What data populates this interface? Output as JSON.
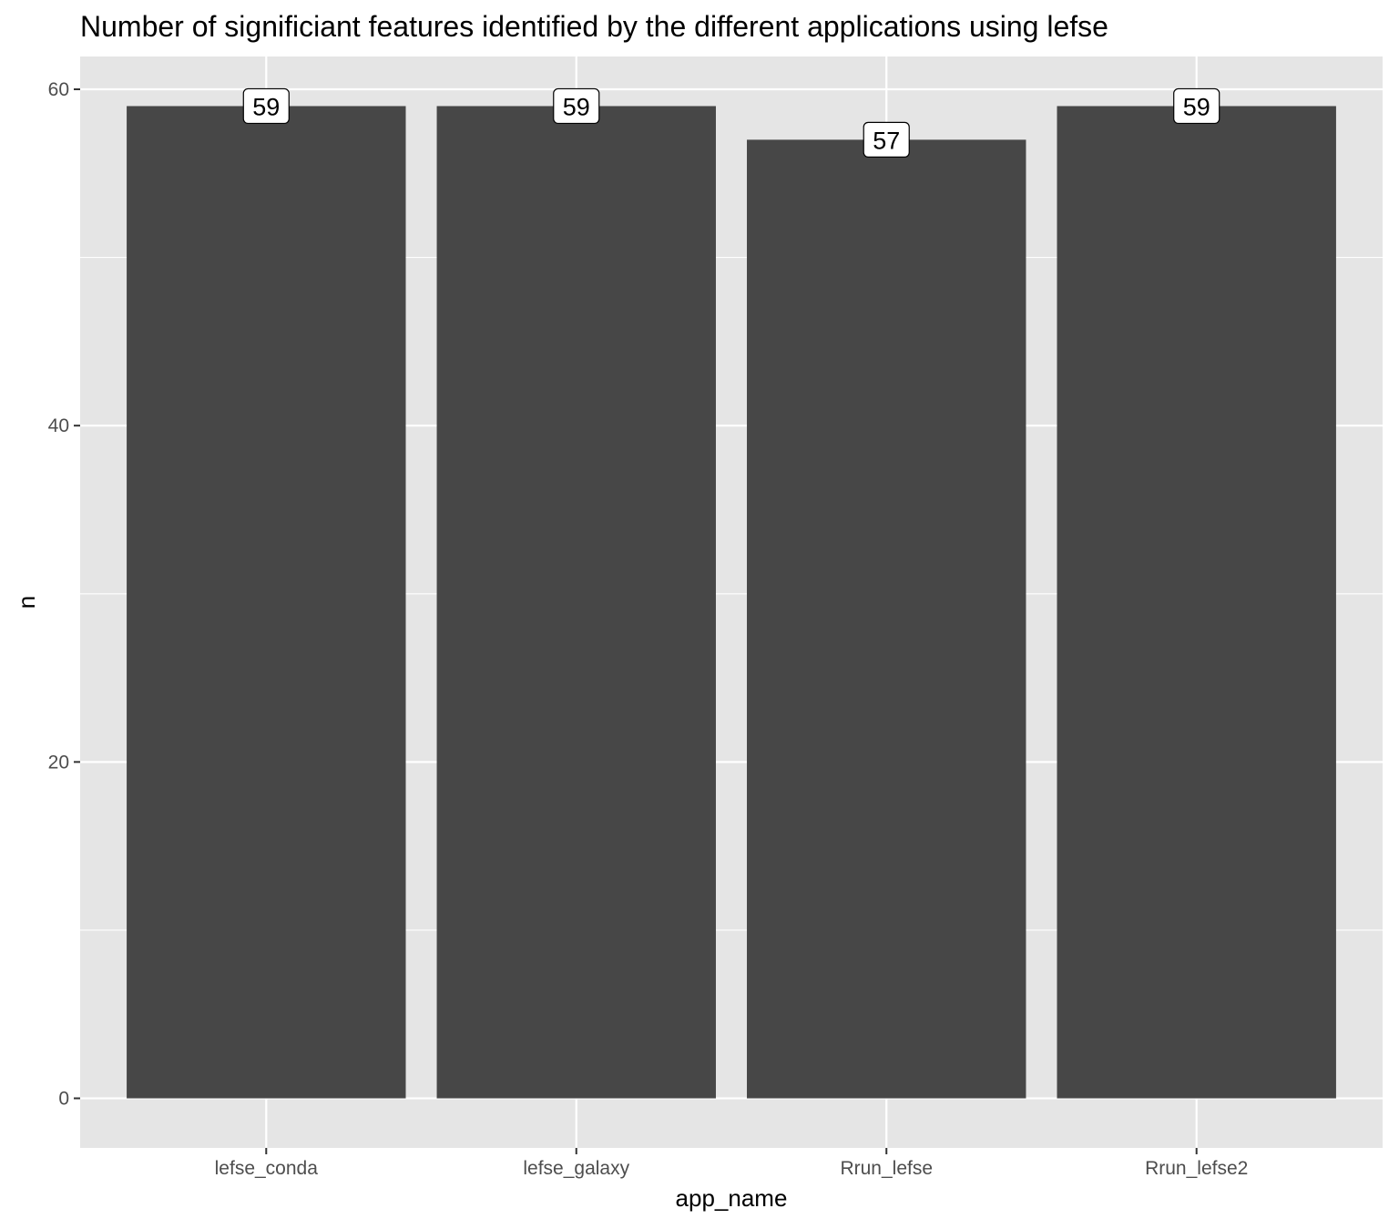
{
  "chart_data": {
    "type": "bar",
    "title": "Number of significiant features identified by the different applications using lefse",
    "xlabel": "app_name",
    "ylabel": "n",
    "categories": [
      "lefse_conda",
      "lefse_galaxy",
      "Rrun_lefse",
      "Rrun_lefse2"
    ],
    "values": [
      59,
      59,
      57,
      59
    ],
    "data_labels": [
      "59",
      "59",
      "57",
      "59"
    ],
    "ylim": [
      -2.95,
      61.95
    ],
    "y_ticks": [
      0,
      20,
      40,
      60
    ],
    "y_tick_labels": [
      "0",
      "20",
      "40",
      "60"
    ],
    "y_minor_gridlines": [
      10,
      30,
      50
    ],
    "grid": true,
    "legend": "none",
    "colors": {
      "bar": "#474747",
      "panel_background": "#e5e5e5",
      "gridline": "#ffffff",
      "tick_text": "#4d4d4d",
      "label_box_fill": "#ffffff",
      "label_box_stroke": "#000000"
    }
  }
}
